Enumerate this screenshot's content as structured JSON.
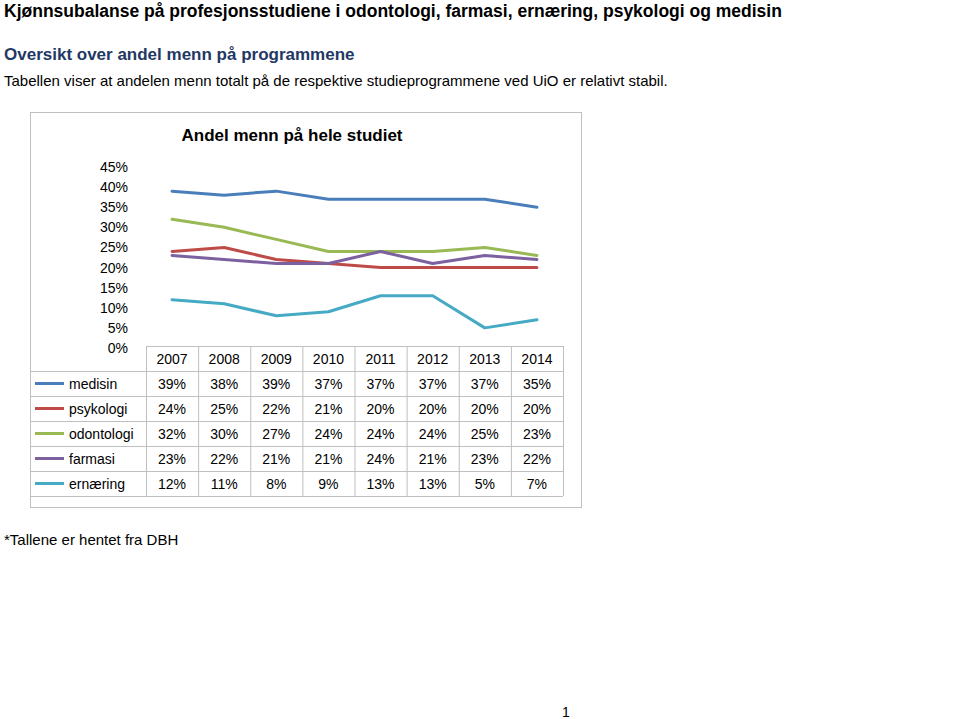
{
  "page": {
    "title": "Kjønnsubalanse på profesjonsstudiene i odontologi, farmasi, ernæring, psykologi og medisin",
    "subtitle": "Oversikt over andel menn på programmene",
    "text": "Tabellen viser at andelen menn totalt på de respektive studieprogrammene ved UiO er relativt stabil.",
    "footnote": "*Tallene er hentet fra DBH",
    "page_number": "1"
  },
  "chart_data": {
    "type": "line",
    "title": "Andel menn på hele studiet",
    "categories": [
      "2007",
      "2008",
      "2009",
      "2010",
      "2011",
      "2012",
      "2013",
      "2014"
    ],
    "series": [
      {
        "name": "medisin",
        "color": "#4a7ebb",
        "values": [
          39,
          38,
          39,
          37,
          37,
          37,
          37,
          35
        ],
        "value_labels": [
          "39%",
          "38%",
          "39%",
          "37%",
          "37%",
          "37%",
          "37%",
          "35%"
        ]
      },
      {
        "name": "psykologi",
        "color": "#be4b48",
        "values": [
          24,
          25,
          22,
          21,
          20,
          20,
          20,
          20
        ],
        "value_labels": [
          "24%",
          "25%",
          "22%",
          "21%",
          "20%",
          "20%",
          "20%",
          "20%"
        ]
      },
      {
        "name": "odontologi",
        "color": "#98b954",
        "values": [
          32,
          30,
          27,
          24,
          24,
          24,
          25,
          23
        ],
        "value_labels": [
          "32%",
          "30%",
          "27%",
          "24%",
          "24%",
          "24%",
          "25%",
          "23%"
        ]
      },
      {
        "name": "farmasi",
        "color": "#7d60a0",
        "values": [
          23,
          22,
          21,
          21,
          24,
          21,
          23,
          22
        ],
        "value_labels": [
          "23%",
          "22%",
          "21%",
          "21%",
          "24%",
          "21%",
          "23%",
          "22%"
        ]
      },
      {
        "name": "ernæring",
        "color": "#46aac5",
        "values": [
          12,
          11,
          8,
          9,
          13,
          13,
          5,
          7
        ],
        "value_labels": [
          "12%",
          "11%",
          "8%",
          "9%",
          "13%",
          "13%",
          "5%",
          "7%"
        ]
      }
    ],
    "ylim": [
      0,
      45
    ],
    "yticks": [
      {
        "value": 0,
        "label": "0%"
      },
      {
        "value": 5,
        "label": "5%"
      },
      {
        "value": 10,
        "label": "10%"
      },
      {
        "value": 15,
        "label": "15%"
      },
      {
        "value": 20,
        "label": "20%"
      },
      {
        "value": 25,
        "label": "25%"
      },
      {
        "value": 30,
        "label": "30%"
      },
      {
        "value": 35,
        "label": "35%"
      },
      {
        "value": 40,
        "label": "40%"
      },
      {
        "value": 45,
        "label": "45%"
      }
    ],
    "grid": false
  }
}
